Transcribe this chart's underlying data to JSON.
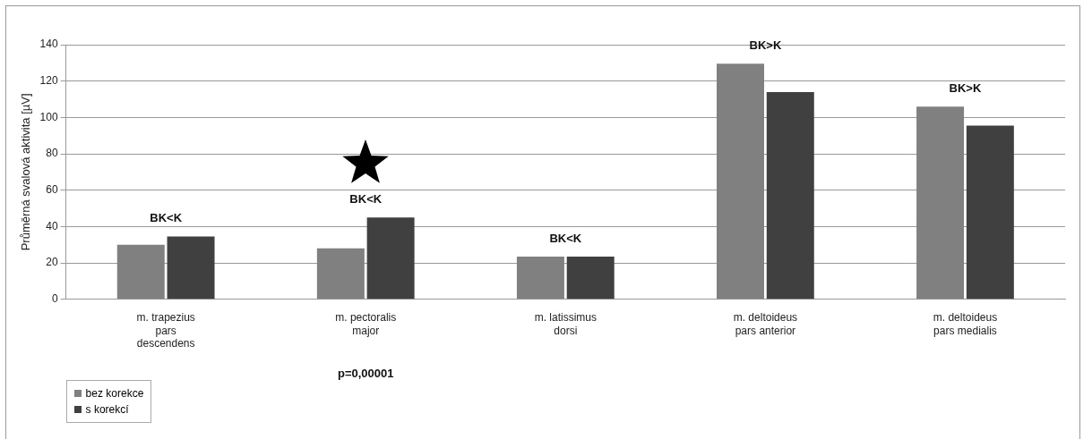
{
  "chart_data": {
    "type": "bar",
    "ylabel": "Průměrná svalová aktivita [µV]",
    "categories": [
      "m. trapezius\npars\ndescendens",
      "m. pectoralis\nmajor",
      "m. latissimus\ndorsi",
      "m. deltoideus\npars anterior",
      "m. deltoideus\npars medialis"
    ],
    "series": [
      {
        "name": "bez korekce",
        "color": "#808080",
        "values": [
          30,
          28,
          23.5,
          129.5,
          106
        ]
      },
      {
        "name": "s korekcí",
        "color": "#404040",
        "values": [
          34.5,
          45,
          23.5,
          114,
          95.5
        ]
      }
    ],
    "ylim": [
      0,
      140
    ],
    "yticks": [
      0,
      20,
      40,
      60,
      80,
      100,
      120,
      140
    ],
    "grid": "y",
    "legend": "bottom left",
    "annotations": [
      "BK<K",
      "BK<K",
      "BK<K",
      "BK>K",
      "BK>K",
      "p=0,00001"
    ]
  }
}
